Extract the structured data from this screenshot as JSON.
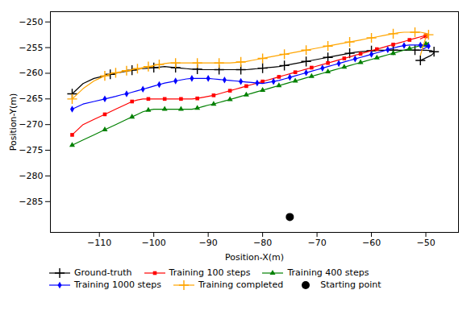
{
  "chart_data": {
    "type": "line",
    "xlabel": "Position-X(m)",
    "ylabel": "Position-Y(m)",
    "xlim": [
      -119,
      -44
    ],
    "ylim": [
      -291,
      -248
    ],
    "xticks": [
      -110,
      -100,
      -90,
      -80,
      -70,
      -60,
      -50
    ],
    "yticks": [
      -250,
      -255,
      -260,
      -265,
      -270,
      -275,
      -280,
      -285
    ],
    "grid": false,
    "legend": "lower left",
    "series": [
      {
        "name": "Ground-truth",
        "color": "black",
        "marker": "plus",
        "line_style": "solid",
        "x": [
          -115,
          -113,
          -111,
          -109,
          -108,
          -107,
          -106,
          -105,
          -104,
          -103,
          -102,
          -101,
          -100,
          -99,
          -98,
          -97,
          -96,
          -95,
          -94,
          -93,
          -92,
          -91,
          -90,
          -89,
          -88,
          -87,
          -86,
          -85,
          -84,
          -83,
          -82,
          -81,
          -80,
          -79,
          -78,
          -77,
          -76,
          -75,
          -74,
          -73,
          -72,
          -71,
          -70,
          -69,
          -68,
          -67,
          -66,
          -65,
          -64,
          -63,
          -62,
          -61,
          -60,
          -59,
          -58,
          -57,
          -56,
          -55,
          -54,
          -53,
          -52,
          -51,
          -50,
          -49,
          -48.5,
          -48.5,
          -49,
          -50,
          -51
        ],
        "values": [
          -264,
          -262,
          -261,
          -260.5,
          -260.2,
          -260,
          -259.8,
          -259.6,
          -259.4,
          -259.2,
          -259.1,
          -259,
          -258.9,
          -258.8,
          -258.7,
          -258.8,
          -258.9,
          -259,
          -259.1,
          -259.2,
          -259.2,
          -259.3,
          -259.3,
          -259.3,
          -259.3,
          -259.3,
          -259.3,
          -259.3,
          -259.3,
          -259.3,
          -259.2,
          -259.1,
          -259,
          -258.9,
          -258.8,
          -258.7,
          -258.5,
          -258.3,
          -258.1,
          -257.9,
          -257.7,
          -257.5,
          -257.3,
          -257.1,
          -256.9,
          -256.7,
          -256.5,
          -256.3,
          -256.1,
          -255.9,
          -255.8,
          -255.7,
          -255.6,
          -255.5,
          -255.5,
          -255.5,
          -255.5,
          -255.5,
          -255.5,
          -255.5,
          -255.5,
          -255.5,
          -255.5,
          -255.6,
          -255.8,
          -256.0,
          -256.5,
          -257.0,
          -257.5
        ]
      },
      {
        "name": "Training 100 steps",
        "color": "red",
        "marker": "square",
        "line_style": "solid",
        "x": [
          -115,
          -113,
          -111,
          -109,
          -107,
          -105,
          -104,
          -103,
          -102,
          -101,
          -100,
          -99,
          -98,
          -97,
          -96,
          -95,
          -94,
          -93,
          -92,
          -91,
          -90,
          -89,
          -88,
          -87,
          -86,
          -85,
          -84,
          -83,
          -82,
          -81,
          -80,
          -79,
          -78,
          -77,
          -76,
          -75,
          -74,
          -73,
          -72,
          -71,
          -70,
          -69,
          -68,
          -67,
          -66,
          -65,
          -64,
          -63,
          -62,
          -61,
          -60,
          -59,
          -58,
          -57,
          -56,
          -55,
          -54,
          -53,
          -52,
          -51,
          -50,
          -49.5,
          -49.5,
          -50,
          -51
        ],
        "values": [
          -272,
          -270,
          -269,
          -268,
          -267,
          -266,
          -265.5,
          -265.2,
          -265,
          -265,
          -265,
          -265,
          -265,
          -265,
          -265,
          -265,
          -265,
          -265,
          -264.9,
          -264.7,
          -264.5,
          -264.3,
          -264.0,
          -263.7,
          -263.4,
          -263.1,
          -262.8,
          -262.5,
          -262.2,
          -261.9,
          -261.6,
          -261.3,
          -261.0,
          -260.7,
          -260.4,
          -260.1,
          -259.8,
          -259.5,
          -259.2,
          -258.9,
          -258.6,
          -258.3,
          -258.0,
          -257.7,
          -257.4,
          -257.1,
          -256.8,
          -256.5,
          -256.2,
          -255.9,
          -255.6,
          -255.3,
          -255.0,
          -254.7,
          -254.4,
          -254.1,
          -253.8,
          -253.5,
          -253.2,
          -252.9,
          -252.6,
          -252.3,
          -252.3,
          -252.8,
          -253.3
        ]
      },
      {
        "name": "Training 400 steps",
        "color": "green",
        "marker": "triangle",
        "line_style": "solid",
        "x": [
          -115,
          -113,
          -111,
          -109,
          -107,
          -105,
          -104,
          -103,
          -102,
          -101,
          -100,
          -99,
          -98,
          -97,
          -96,
          -95,
          -94,
          -93,
          -92,
          -91,
          -90,
          -89,
          -88,
          -87,
          -86,
          -85,
          -84,
          -83,
          -82,
          -81,
          -80,
          -79,
          -78,
          -77,
          -76,
          -75,
          -74,
          -73,
          -72,
          -71,
          -70,
          -69,
          -68,
          -67,
          -66,
          -65,
          -64,
          -63,
          -62,
          -61,
          -60,
          -59,
          -58,
          -57,
          -56,
          -55,
          -54,
          -53,
          -52,
          -51,
          -50,
          -49.5,
          -49.5,
          -50,
          -51
        ],
        "values": [
          -274,
          -273,
          -272,
          -271,
          -270,
          -269,
          -268.5,
          -268,
          -267.5,
          -267.2,
          -267,
          -267,
          -267,
          -267,
          -267,
          -267,
          -267,
          -267,
          -266.8,
          -266.5,
          -266.2,
          -266.0,
          -265.7,
          -265.4,
          -265.1,
          -264.8,
          -264.5,
          -264.2,
          -263.9,
          -263.6,
          -263.3,
          -263.0,
          -262.7,
          -262.4,
          -262.1,
          -261.8,
          -261.5,
          -261.2,
          -260.9,
          -260.6,
          -260.3,
          -260.0,
          -259.7,
          -259.4,
          -259.1,
          -258.8,
          -258.5,
          -258.2,
          -257.9,
          -257.6,
          -257.3,
          -257.0,
          -256.7,
          -256.4,
          -256.1,
          -255.8,
          -255.5,
          -255.2,
          -254.9,
          -254.6,
          -254.3,
          -254.0,
          -254.0,
          -254.5,
          -255.0
        ]
      },
      {
        "name": "Training 1000 steps",
        "color": "blue",
        "marker": "diamond",
        "line_style": "solid",
        "x": [
          -115,
          -113,
          -111,
          -109,
          -107,
          -106,
          -105,
          -104,
          -103,
          -102,
          -101,
          -100,
          -99,
          -98,
          -97,
          -96,
          -95,
          -94,
          -93,
          -92,
          -91,
          -90,
          -89,
          -88,
          -87,
          -86,
          -85,
          -84,
          -83,
          -82,
          -81,
          -80,
          -79,
          -78,
          -77,
          -76,
          -75,
          -74,
          -73,
          -72,
          -71,
          -70,
          -69,
          -68,
          -67,
          -66,
          -65,
          -64,
          -63,
          -62,
          -61,
          -60,
          -59,
          -58,
          -57,
          -56,
          -55,
          -54,
          -53,
          -52,
          -51,
          -50,
          -49.5,
          -49.5,
          -50,
          -51
        ],
        "values": [
          -267,
          -266,
          -265.5,
          -265,
          -264.5,
          -264.2,
          -264,
          -263.7,
          -263.4,
          -263.1,
          -262.8,
          -262.5,
          -262.2,
          -261.9,
          -261.7,
          -261.5,
          -261.3,
          -261.1,
          -261,
          -261,
          -261,
          -261,
          -261.1,
          -261.2,
          -261.3,
          -261.4,
          -261.5,
          -261.6,
          -261.7,
          -261.8,
          -261.9,
          -262,
          -261.8,
          -261.6,
          -261.4,
          -261.1,
          -260.8,
          -260.5,
          -260.2,
          -259.9,
          -259.6,
          -259.3,
          -259.0,
          -258.7,
          -258.4,
          -258.1,
          -257.8,
          -257.5,
          -257.2,
          -256.9,
          -256.6,
          -256.3,
          -256.0,
          -255.7,
          -255.4,
          -255.1,
          -254.8,
          -254.6,
          -254.5,
          -254.5,
          -254.5,
          -254.6,
          -254.7,
          -254.7,
          -255.0,
          -255.5
        ]
      },
      {
        "name": "Training completed",
        "color": "orange",
        "marker": "plus",
        "line_style": "solid",
        "x": [
          -115,
          -113,
          -111,
          -110,
          -109,
          -108.5,
          -108,
          -107.5,
          -107,
          -106.5,
          -106,
          -105.5,
          -105,
          -104.5,
          -104,
          -103.5,
          -103,
          -102.5,
          -102,
          -101.5,
          -101,
          -100.5,
          -100,
          -99.5,
          -99,
          -98.5,
          -98,
          -97,
          -96,
          -95,
          -94,
          -93,
          -92,
          -91,
          -90,
          -89,
          -88,
          -87,
          -86,
          -85,
          -84,
          -83,
          -82,
          -81,
          -80,
          -79,
          -78,
          -77,
          -76,
          -75,
          -74,
          -73,
          -72,
          -71,
          -70,
          -69,
          -68,
          -67,
          -66,
          -65,
          -64,
          -63,
          -62,
          -61,
          -60,
          -59,
          -58,
          -57,
          -56,
          -55,
          -54,
          -53,
          -52,
          -51,
          -50,
          -49.5,
          -49.5,
          -50,
          -51
        ],
        "values": [
          -265,
          -263,
          -261.5,
          -261,
          -260.5,
          -260.3,
          -260.1,
          -260,
          -259.9,
          -259.8,
          -259.7,
          -259.6,
          -259.5,
          -259.4,
          -259.3,
          -259.2,
          -259.1,
          -259.0,
          -258.9,
          -258.8,
          -258.7,
          -258.6,
          -258.5,
          -258.4,
          -258.3,
          -258.2,
          -258.1,
          -258.0,
          -258.0,
          -258.0,
          -258.0,
          -258.0,
          -258.0,
          -258.0,
          -258.0,
          -258.0,
          -258.0,
          -258.0,
          -258.0,
          -257.9,
          -257.8,
          -257.7,
          -257.5,
          -257.3,
          -257.1,
          -256.9,
          -256.7,
          -256.5,
          -256.3,
          -256.1,
          -255.9,
          -255.7,
          -255.5,
          -255.3,
          -255.1,
          -254.9,
          -254.7,
          -254.5,
          -254.3,
          -254.1,
          -253.9,
          -253.7,
          -253.5,
          -253.3,
          -253.1,
          -252.9,
          -252.7,
          -252.5,
          -252.3,
          -252.1,
          -252.0,
          -252.0,
          -252.0,
          -252.0,
          -252.2,
          -252.5,
          -252.5,
          -253.0,
          -256.5
        ]
      },
      {
        "name": "Starting point",
        "color": "black",
        "marker": "circle",
        "line_style": "none",
        "type": "scatter",
        "x": [
          -75
        ],
        "values": [
          -288
        ]
      }
    ]
  }
}
